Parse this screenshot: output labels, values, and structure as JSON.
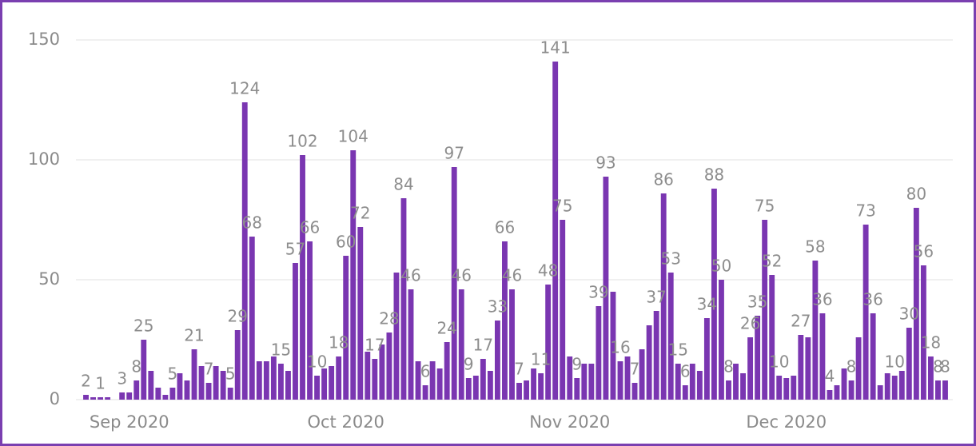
{
  "chart_data": {
    "type": "bar",
    "categories": [
      null,
      null,
      null,
      null,
      null,
      null,
      "Sep 2020",
      null,
      null,
      null,
      null,
      null,
      null,
      null,
      null,
      null,
      null,
      null,
      null,
      null,
      null,
      null,
      null,
      null,
      null,
      null,
      null,
      null,
      null,
      null,
      null,
      null,
      null,
      null,
      null,
      null,
      "Oct 2020",
      null,
      null,
      null,
      null,
      null,
      null,
      null,
      null,
      null,
      null,
      null,
      null,
      null,
      null,
      null,
      null,
      null,
      null,
      null,
      null,
      null,
      null,
      null,
      null,
      null,
      null,
      null,
      null,
      null,
      null,
      "Nov 2020",
      null,
      null,
      null,
      null,
      null,
      null,
      null,
      null,
      null,
      null,
      null,
      null,
      null,
      null,
      null,
      null,
      null,
      null,
      null,
      null,
      null,
      null,
      null,
      null,
      null,
      null,
      null,
      null,
      null,
      "Dec 2020",
      null,
      null,
      null,
      null,
      null,
      null,
      null,
      null,
      null,
      null,
      null,
      null,
      null,
      null,
      null,
      null,
      null,
      null,
      null,
      null,
      null,
      null
    ],
    "values": [
      2,
      1,
      1,
      1,
      0,
      3,
      3,
      8,
      25,
      12,
      5,
      2,
      5,
      11,
      8,
      21,
      14,
      7,
      14,
      12,
      5,
      29,
      124,
      68,
      16,
      16,
      18,
      15,
      12,
      57,
      102,
      66,
      10,
      13,
      14,
      18,
      60,
      104,
      72,
      20,
      17,
      23,
      28,
      53,
      84,
      46,
      16,
      6,
      16,
      13,
      24,
      97,
      46,
      9,
      10,
      17,
      12,
      33,
      66,
      46,
      7,
      8,
      13,
      11,
      48,
      141,
      75,
      18,
      9,
      15,
      15,
      39,
      93,
      45,
      16,
      18,
      7,
      21,
      31,
      37,
      86,
      53,
      15,
      6,
      15,
      12,
      34,
      88,
      50,
      8,
      15,
      11,
      26,
      35,
      75,
      52,
      10,
      9,
      10,
      27,
      26,
      58,
      36,
      4,
      6,
      13,
      8,
      26,
      73,
      36,
      6,
      11,
      10,
      12,
      30,
      80,
      56,
      18,
      8,
      8
    ],
    "value_labels": [
      "2",
      null,
      "1",
      null,
      null,
      "3",
      null,
      "8",
      "25",
      null,
      null,
      null,
      "5",
      null,
      null,
      "21",
      null,
      "7",
      null,
      null,
      "5",
      "29",
      "124",
      "68",
      null,
      null,
      null,
      "15",
      null,
      "57",
      "102",
      "66",
      "10",
      null,
      null,
      "18",
      "60",
      "104",
      "72",
      null,
      "17",
      null,
      "28",
      null,
      "84",
      "46",
      null,
      "6",
      null,
      null,
      "24",
      "97",
      "46",
      "9",
      null,
      "17",
      null,
      "33",
      "66",
      "46",
      "7",
      null,
      null,
      "11",
      "48",
      "141",
      "75",
      null,
      "9",
      null,
      null,
      "39",
      "93",
      null,
      "16",
      null,
      "7",
      null,
      null,
      "37",
      "86",
      "53",
      "15",
      "6",
      null,
      null,
      "34",
      "88",
      "50",
      "8",
      null,
      null,
      "26",
      "35",
      "75",
      "52",
      "10",
      null,
      null,
      "27",
      null,
      "58",
      "36",
      "4",
      null,
      null,
      "8",
      null,
      "73",
      "36",
      null,
      null,
      "10",
      null,
      "30",
      "80",
      "56",
      "18",
      "8",
      "8"
    ],
    "color": "#7a36b1",
    "ylim": [
      0,
      150
    ],
    "yticks": [
      0,
      50,
      100,
      150
    ],
    "grid": true
  }
}
